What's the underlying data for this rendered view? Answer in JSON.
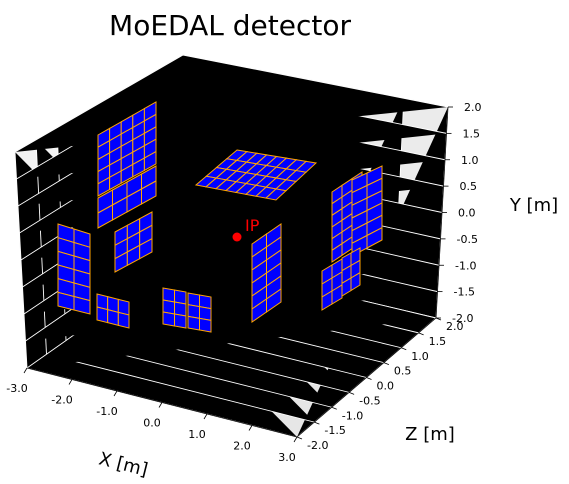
{
  "chart_data": {
    "type": "3d-scatter",
    "title": "MoEDAL detector",
    "xlabel": "X [m]",
    "ylabel": "Y [m]",
    "zlabel": "Z [m]",
    "xlim": [
      -3.0,
      3.0
    ],
    "ylim": [
      -2.0,
      2.0
    ],
    "zlim": [
      -2.0,
      2.0
    ],
    "x_ticks": [
      "-3.0",
      "-2.0",
      "-1.0",
      "0.0",
      "1.0",
      "2.0",
      "3.0"
    ],
    "y_ticks": [
      "-2.0",
      "-1.5",
      "-1.0",
      "-0.5",
      "0.0",
      "0.5",
      "1.0",
      "1.5",
      "2.0"
    ],
    "z_ticks": [
      "-2.0",
      "-1.5",
      "-1.0",
      "-0.5",
      "0.0",
      "0.5",
      "1.0",
      "1.5",
      "2.0"
    ],
    "grid": true,
    "points": [
      {
        "name": "IP",
        "x": 0.0,
        "y": 0.0,
        "z": 0.0,
        "color": "#ff0000"
      }
    ],
    "module_colors": {
      "fill": "#0000ff",
      "edge": "#ffa500"
    },
    "module_groups": 14
  }
}
